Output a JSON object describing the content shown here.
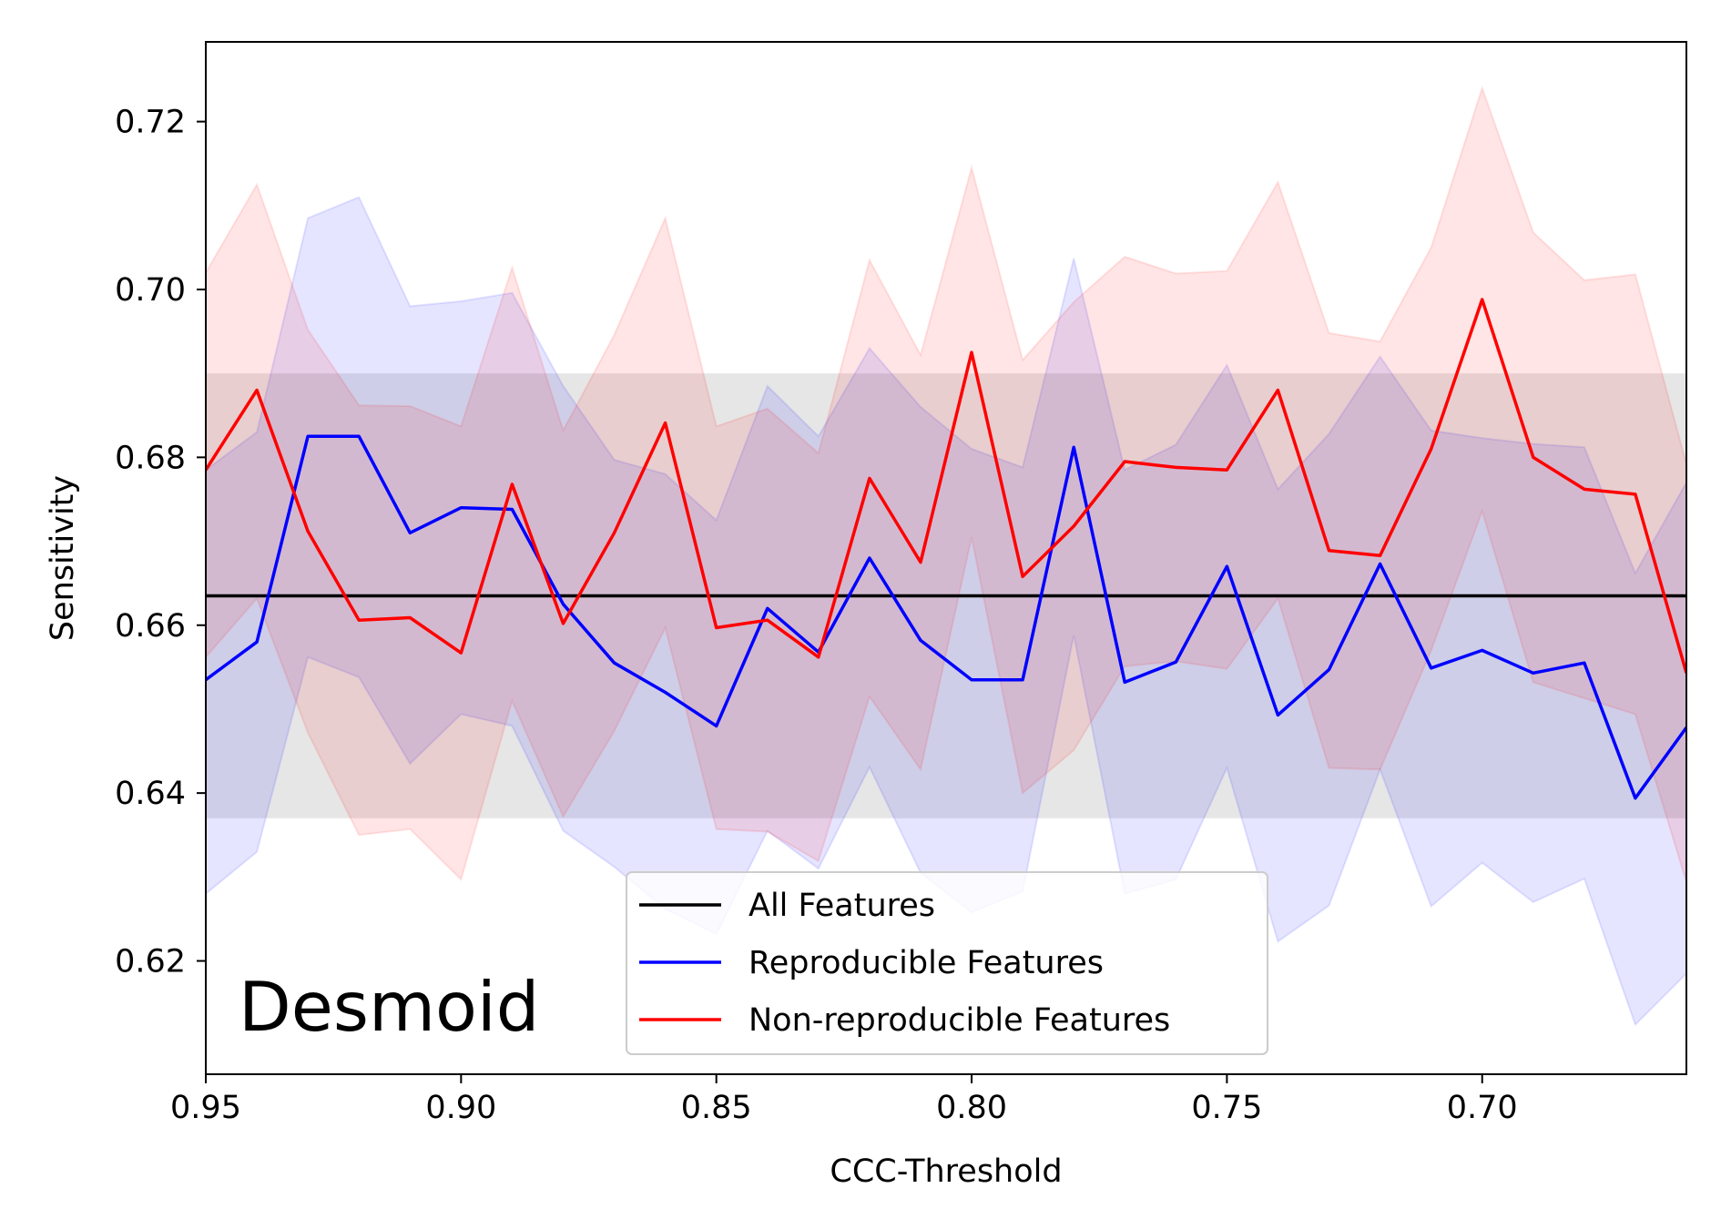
{
  "chart_data": {
    "type": "line",
    "title": "",
    "annotation": "Desmoid",
    "xlabel": "CCC-Threshold",
    "ylabel": "Sensitivity",
    "xlim": [
      0.95,
      0.66
    ],
    "ylim": [
      0.6065,
      0.7295
    ],
    "x_ticks": [
      0.95,
      0.9,
      0.85,
      0.8,
      0.75,
      0.7
    ],
    "x_tick_labels": [
      "0.95",
      "0.90",
      "0.85",
      "0.80",
      "0.75",
      "0.70"
    ],
    "y_ticks": [
      0.62,
      0.64,
      0.66,
      0.68,
      0.7,
      0.72
    ],
    "y_tick_labels": [
      "0.62",
      "0.64",
      "0.66",
      "0.68",
      "0.70",
      "0.72"
    ],
    "grid": false,
    "legend_position": "bottom-center",
    "x": [
      0.95,
      0.94,
      0.93,
      0.92,
      0.91,
      0.9,
      0.89,
      0.88,
      0.87,
      0.86,
      0.85,
      0.84,
      0.83,
      0.82,
      0.81,
      0.8,
      0.79,
      0.78,
      0.77,
      0.76,
      0.75,
      0.74,
      0.73,
      0.72,
      0.71,
      0.7,
      0.69,
      0.68,
      0.67,
      0.66
    ],
    "baseline": {
      "name": "All Features",
      "value": 0.6635,
      "band": [
        0.637,
        0.69
      ],
      "color": "#000000",
      "band_color": "#808080"
    },
    "series": [
      {
        "name": "Reproducible Features",
        "color": "#0000ff",
        "values": [
          0.6535,
          0.658,
          0.6825,
          0.6825,
          0.671,
          0.674,
          0.6738,
          0.6625,
          0.6555,
          0.652,
          0.648,
          0.662,
          0.6568,
          0.668,
          0.6582,
          0.6535,
          0.6535,
          0.6812,
          0.6532,
          0.6556,
          0.667,
          0.6493,
          0.6547,
          0.6673,
          0.6549,
          0.657,
          0.6543,
          0.6555,
          0.6394,
          0.6478
        ],
        "upper": [
          0.6785,
          0.683,
          0.7085,
          0.711,
          0.698,
          0.6986,
          0.6996,
          0.6885,
          0.6797,
          0.678,
          0.6725,
          0.6885,
          0.6825,
          0.693,
          0.686,
          0.681,
          0.6788,
          0.7037,
          0.6785,
          0.6815,
          0.691,
          0.6762,
          0.6828,
          0.692,
          0.6832,
          0.6823,
          0.6816,
          0.6812,
          0.6662,
          0.677
        ],
        "lower": [
          0.628,
          0.633,
          0.6562,
          0.6538,
          0.6435,
          0.6494,
          0.648,
          0.6355,
          0.6312,
          0.6262,
          0.6232,
          0.6355,
          0.631,
          0.6431,
          0.6305,
          0.6258,
          0.6283,
          0.6588,
          0.628,
          0.6297,
          0.643,
          0.6223,
          0.6266,
          0.6428,
          0.6265,
          0.6317,
          0.627,
          0.6298,
          0.6124,
          0.6185
        ]
      },
      {
        "name": "Non-reproducible Features",
        "color": "#ff0000",
        "values": [
          0.6785,
          0.688,
          0.6712,
          0.6606,
          0.6609,
          0.6567,
          0.6768,
          0.6602,
          0.671,
          0.6841,
          0.6597,
          0.6606,
          0.6562,
          0.6775,
          0.6675,
          0.6925,
          0.6658,
          0.6718,
          0.6795,
          0.6788,
          0.6785,
          0.688,
          0.6689,
          0.6683,
          0.681,
          0.6988,
          0.68,
          0.6762,
          0.6756,
          0.6543
        ],
        "upper": [
          0.702,
          0.7125,
          0.6952,
          0.6862,
          0.6861,
          0.6837,
          0.7026,
          0.6832,
          0.6946,
          0.7085,
          0.6837,
          0.6858,
          0.6805,
          0.7035,
          0.6922,
          0.7145,
          0.6916,
          0.6985,
          0.7039,
          0.7019,
          0.7022,
          0.7128,
          0.6948,
          0.6938,
          0.705,
          0.724,
          0.7068,
          0.7011,
          0.7018,
          0.6792
        ],
        "lower": [
          0.6562,
          0.6632,
          0.6472,
          0.635,
          0.6357,
          0.6297,
          0.651,
          0.6372,
          0.6474,
          0.6597,
          0.6357,
          0.6354,
          0.6319,
          0.6515,
          0.6428,
          0.6705,
          0.64,
          0.6451,
          0.6551,
          0.6557,
          0.6548,
          0.6632,
          0.643,
          0.6428,
          0.657,
          0.6736,
          0.6532,
          0.6513,
          0.6494,
          0.6294
        ]
      }
    ]
  }
}
